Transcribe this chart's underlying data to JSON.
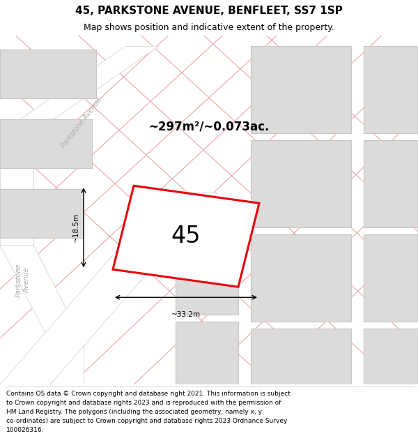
{
  "title": "45, PARKSTONE AVENUE, BENFLEET, SS7 1SP",
  "subtitle": "Map shows position and indicative extent of the property.",
  "footer_lines": [
    "Contains OS data © Crown copyright and database right 2021. This information is subject",
    "to Crown copyright and database rights 2023 and is reproduced with the permission of",
    "HM Land Registry. The polygons (including the associated geometry, namely x, y",
    "co-ordinates) are subject to Crown copyright and database rights 2023 Ordnance Survey",
    "100026316."
  ],
  "map_bg": "#eeecea",
  "plot_color_fill": "#ffffff",
  "plot_color_edge": "#e8000a",
  "building_fill": "#dddbd9",
  "building_edge": "#c8c6c4",
  "grid_line_color": "#e8a0a0",
  "road_fill": "#ffffff",
  "area_text": "~297m²/~0.073ac.",
  "plot_label": "45",
  "dim1_text": "~18.5m",
  "dim2_text": "~33.2m",
  "title_fontsize": 11,
  "subtitle_fontsize": 9,
  "footer_fontsize": 6.5,
  "road_label_color": "#aaaaaa",
  "road_label_fontsize": 7
}
